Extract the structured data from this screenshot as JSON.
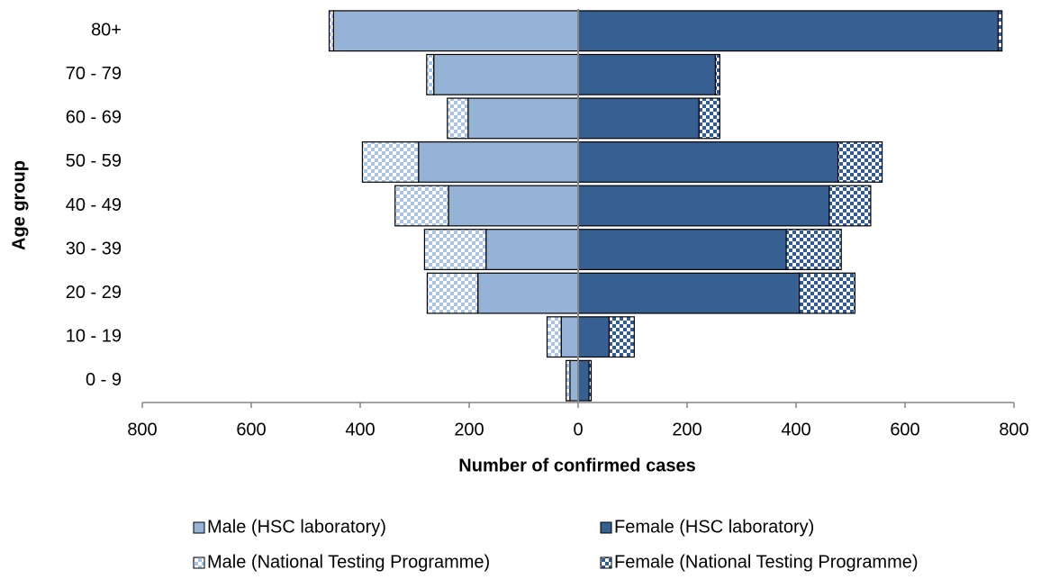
{
  "chart_data": {
    "type": "pyramid",
    "x_label": "Number of confirmed cases",
    "y_label": "Age group",
    "categories": [
      "0 - 9",
      "10  - 19",
      "20 - 29",
      "30 - 39",
      "40 - 49",
      "50 - 59",
      "60 - 69",
      "70 - 79",
      "80+"
    ],
    "xlim": [
      -800,
      800
    ],
    "xticks": [
      {
        "value": -800,
        "label": "800"
      },
      {
        "value": -600,
        "label": "600"
      },
      {
        "value": -400,
        "label": "400"
      },
      {
        "value": -200,
        "label": "200"
      },
      0,
      200,
      400,
      600,
      800
    ],
    "series": [
      {
        "name": "Male (HSC laboratory)",
        "color": "#95b3d7",
        "pattern": "solid",
        "values": [
          -15,
          -31,
          -184,
          -169,
          -238,
          -293,
          -202,
          -265,
          -449
        ]
      },
      {
        "name": "Female (HSC laboratory)",
        "color": "#366092",
        "pattern": "solid",
        "values": [
          20,
          57,
          406,
          382,
          461,
          477,
          222,
          252,
          771
        ]
      },
      {
        "name": "Male (National Testing Programme)",
        "color": "#a9c4e8",
        "pattern": "checker",
        "values": [
          -7,
          -26,
          -93,
          -113,
          -98,
          -103,
          -38,
          -13,
          -8
        ]
      },
      {
        "name": "Female (National Testing Programme)",
        "color": "#2f5d99",
        "pattern": "checker",
        "values": [
          4,
          46,
          102,
          101,
          76,
          81,
          38,
          8,
          7
        ]
      }
    ],
    "legend": "bottom"
  }
}
